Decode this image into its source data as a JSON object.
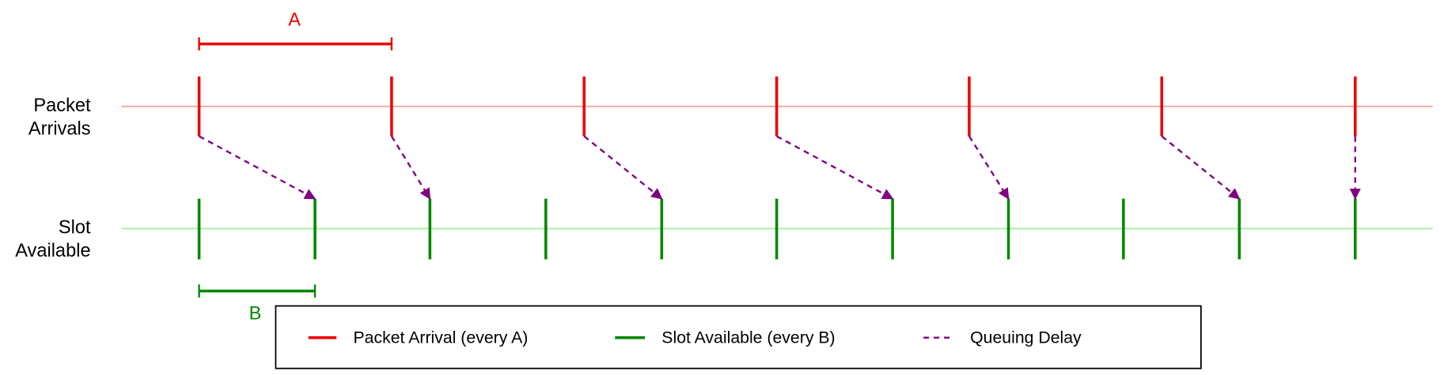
{
  "rows": [
    {
      "label": [
        "Packet",
        "Arrivals"
      ]
    },
    {
      "label": [
        "Slot",
        "Available"
      ]
    }
  ],
  "intervals": {
    "arrival": "A",
    "slot": "B"
  },
  "legend": [
    "Packet Arrival (every A)",
    "Slot Available (every B)",
    "Queuing Delay"
  ]
}
